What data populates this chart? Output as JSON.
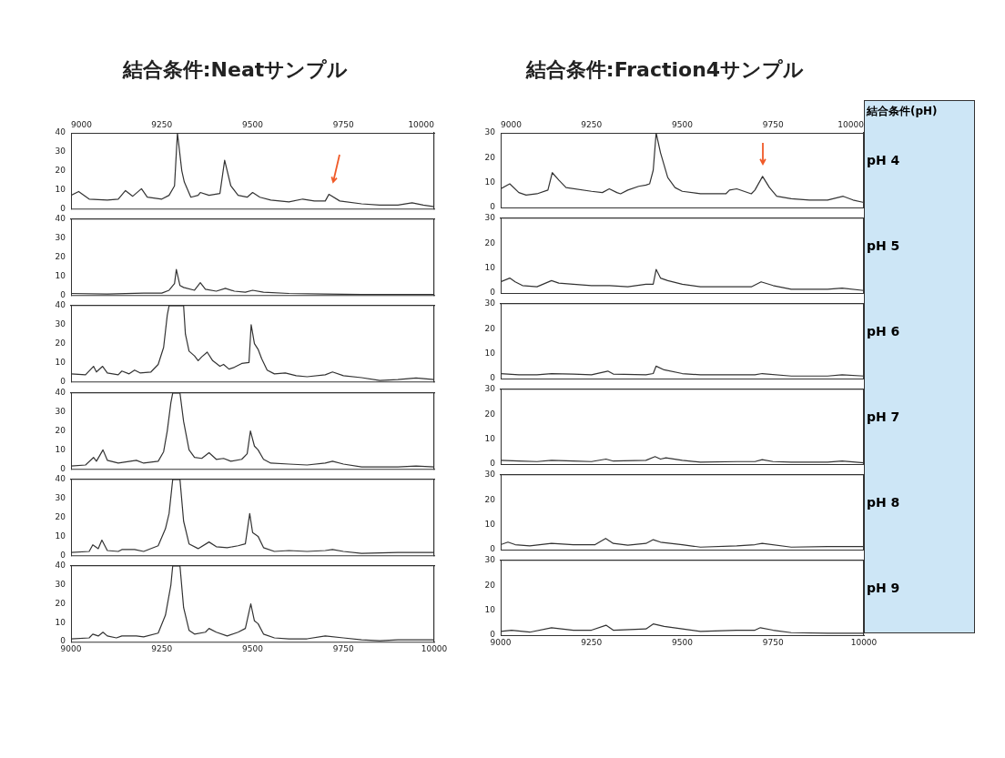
{
  "chart_data": [
    {
      "type": "line",
      "title": "結合条件:Neatサンプル",
      "color": "#333333",
      "marker": "none",
      "grid": false,
      "legend": false,
      "tick_labels": "y",
      "xlim": [
        9000,
        10000
      ],
      "x2lim": [
        9000,
        10000
      ],
      "x2ticks": [
        9000,
        9250,
        9500,
        9750,
        10000
      ],
      "ylim": [
        0,
        40
      ],
      "yticks": [
        0,
        10,
        20,
        30,
        40
      ],
      "x": [
        9000,
        9021,
        9050,
        9100,
        9130,
        9150,
        9170,
        9194,
        9210,
        9250,
        9270,
        9285,
        9293,
        9305,
        9312,
        9330,
        9350,
        9356,
        9380,
        9410,
        9423,
        9440,
        9460,
        9485,
        9500,
        9520,
        9550,
        9600,
        9638,
        9670,
        9700,
        9710,
        9740,
        9800,
        9850,
        9900,
        9939,
        9970,
        10000
      ],
      "values": [
        7,
        9,
        5,
        4.5,
        5,
        9.5,
        6.5,
        10.5,
        6,
        5,
        7,
        12,
        40,
        20,
        14,
        6,
        7,
        8.5,
        7,
        8,
        25.5,
        12,
        7,
        6,
        8.5,
        6,
        4.5,
        3.5,
        5,
        4,
        4,
        7.5,
        4,
        2.5,
        1.8,
        1.8,
        3,
        1.8,
        1
      ]
    },
    {
      "type": "line",
      "color": "#333333",
      "marker": "none",
      "grid": false,
      "legend": false,
      "tick_labels": "y",
      "xlim": [
        9000,
        10000
      ],
      "ylim": [
        0,
        40
      ],
      "yticks": [
        0,
        10,
        20,
        30,
        40
      ],
      "x": [
        9000,
        9100,
        9200,
        9250,
        9270,
        9285,
        9290,
        9300,
        9310,
        9340,
        9356,
        9370,
        9400,
        9425,
        9450,
        9480,
        9500,
        9530,
        9600,
        9700,
        9800,
        9900,
        10000
      ],
      "values": [
        0.8,
        0.5,
        1,
        1,
        2.5,
        6,
        13.5,
        5,
        4,
        2.5,
        6.5,
        3,
        2,
        3.5,
        2,
        1.5,
        2.5,
        1.5,
        0.8,
        0.5,
        0.3,
        0.3,
        0.3
      ]
    },
    {
      "type": "line",
      "color": "#333333",
      "marker": "none",
      "grid": false,
      "legend": false,
      "tick_labels": "y",
      "xlim": [
        9000,
        10000
      ],
      "ylim": [
        0,
        40
      ],
      "yticks": [
        0,
        10,
        20,
        30,
        40
      ],
      "x": [
        9000,
        9040,
        9062,
        9070,
        9087,
        9100,
        9130,
        9140,
        9160,
        9175,
        9190,
        9220,
        9240,
        9255,
        9265,
        9270,
        9310,
        9315,
        9325,
        9340,
        9350,
        9360,
        9375,
        9390,
        9410,
        9420,
        9435,
        9450,
        9470,
        9490,
        9496,
        9505,
        9515,
        9525,
        9540,
        9560,
        9590,
        9620,
        9650,
        9700,
        9720,
        9750,
        9800,
        9850,
        9900,
        9950,
        10000
      ],
      "values": [
        4,
        3.5,
        8,
        5,
        8,
        4.5,
        3.5,
        5.5,
        4,
        6,
        4.5,
        5,
        9,
        18,
        35,
        40,
        40,
        25,
        16,
        13.5,
        11,
        13,
        15.5,
        11,
        8,
        9,
        6.5,
        7.5,
        9.5,
        10,
        30,
        20,
        17,
        12,
        6,
        4,
        4.5,
        3,
        2.5,
        3.5,
        5,
        3,
        2,
        0.5,
        1,
        1.8,
        1
      ]
    },
    {
      "type": "line",
      "color": "#333333",
      "marker": "none",
      "grid": false,
      "legend": false,
      "tick_labels": "y",
      "xlim": [
        9000,
        10000
      ],
      "ylim": [
        0,
        40
      ],
      "yticks": [
        0,
        10,
        20,
        30,
        40
      ],
      "x": [
        9000,
        9040,
        9062,
        9070,
        9088,
        9100,
        9130,
        9180,
        9200,
        9240,
        9255,
        9265,
        9275,
        9280,
        9300,
        9310,
        9325,
        9340,
        9360,
        9380,
        9400,
        9420,
        9440,
        9470,
        9485,
        9494,
        9505,
        9515,
        9530,
        9550,
        9600,
        9650,
        9700,
        9720,
        9750,
        9800,
        9900,
        9950,
        10000
      ],
      "values": [
        1.5,
        2,
        6,
        4,
        10,
        4.5,
        3,
        4.5,
        3,
        4,
        9,
        20,
        35,
        40,
        40,
        25,
        10,
        6,
        5.5,
        8.5,
        5,
        5.5,
        4,
        5,
        8,
        20,
        12,
        10,
        5,
        3,
        2.5,
        2,
        3,
        4,
        2.5,
        1,
        1,
        1.5,
        1
      ]
    },
    {
      "type": "line",
      "color": "#333333",
      "marker": "none",
      "grid": false,
      "legend": false,
      "tick_labels": "y",
      "xlim": [
        9000,
        10000
      ],
      "ylim": [
        0,
        40
      ],
      "yticks": [
        0,
        10,
        20,
        30,
        40
      ],
      "x": [
        9000,
        9050,
        9060,
        9075,
        9085,
        9100,
        9130,
        9140,
        9175,
        9200,
        9240,
        9260,
        9270,
        9280,
        9300,
        9310,
        9325,
        9350,
        9380,
        9400,
        9430,
        9460,
        9480,
        9492,
        9500,
        9515,
        9530,
        9560,
        9600,
        9650,
        9700,
        9720,
        9750,
        9800,
        9900,
        10000
      ],
      "values": [
        1.5,
        2,
        5.5,
        3.5,
        8,
        2.5,
        2,
        3,
        3,
        2,
        5,
        14,
        22,
        40,
        40,
        18,
        6,
        3.5,
        7,
        4.5,
        4,
        5,
        6,
        22,
        12,
        10,
        4,
        2,
        2.5,
        2,
        2.5,
        3,
        2,
        1,
        1.5,
        1.5
      ]
    },
    {
      "type": "line",
      "color": "#333333",
      "marker": "none",
      "grid": false,
      "legend": false,
      "xlim": [
        9000,
        10000
      ],
      "xticks": [
        9000,
        9250,
        9500,
        9750,
        10000
      ],
      "ylim": [
        0,
        40
      ],
      "yticks": [
        0,
        10,
        20,
        30,
        40
      ],
      "x": [
        9000,
        9050,
        9060,
        9075,
        9088,
        9100,
        9125,
        9140,
        9180,
        9200,
        9240,
        9260,
        9275,
        9280,
        9300,
        9310,
        9325,
        9340,
        9370,
        9380,
        9400,
        9430,
        9460,
        9480,
        9495,
        9505,
        9515,
        9530,
        9560,
        9600,
        9650,
        9700,
        9750,
        9800,
        9850,
        9900,
        10000
      ],
      "values": [
        1.5,
        2,
        4,
        3,
        5,
        3,
        2,
        3,
        3,
        2.5,
        4.5,
        14,
        30,
        40,
        40,
        18,
        6,
        4,
        5,
        7,
        5,
        3,
        5,
        7,
        20,
        11,
        9.5,
        4,
        2,
        1.5,
        1.5,
        3,
        2,
        1,
        0.5,
        1,
        1
      ]
    },
    {
      "type": "line",
      "title": "結合条件:Fraction4サンプル",
      "color": "#333333",
      "marker": "none",
      "grid": false,
      "legend": false,
      "tick_labels": "y",
      "xlim": [
        9000,
        10000
      ],
      "x2lim": [
        9000,
        10000
      ],
      "x2ticks": [
        9000,
        9250,
        9500,
        9750,
        10000
      ],
      "ylim": [
        0,
        30
      ],
      "yticks": [
        0,
        10,
        20,
        30
      ],
      "x": [
        9000,
        9025,
        9050,
        9070,
        9100,
        9130,
        9142,
        9160,
        9180,
        9250,
        9280,
        9299,
        9320,
        9330,
        9350,
        9380,
        9400,
        9410,
        9420,
        9428,
        9440,
        9460,
        9480,
        9500,
        9550,
        9600,
        9620,
        9630,
        9650,
        9670,
        9690,
        9700,
        9721,
        9740,
        9760,
        9800,
        9850,
        9900,
        9943,
        9970,
        10000
      ],
      "values": [
        7.5,
        9.5,
        6,
        5,
        5.5,
        7,
        14,
        11,
        8,
        6.5,
        6,
        7.5,
        6,
        5.5,
        7,
        8.5,
        9,
        9.5,
        15,
        30,
        22,
        12,
        8,
        6.5,
        5.5,
        5.5,
        5.5,
        7,
        7.5,
        6.5,
        5.5,
        7,
        12.5,
        8,
        4.5,
        3.5,
        3,
        3,
        4.5,
        3,
        2
      ]
    },
    {
      "type": "line",
      "color": "#333333",
      "marker": "none",
      "grid": false,
      "legend": false,
      "tick_labels": "y",
      "xlim": [
        9000,
        10000
      ],
      "ylim": [
        0,
        30
      ],
      "yticks": [
        0,
        10,
        20,
        30
      ],
      "x": [
        9000,
        9025,
        9040,
        9060,
        9100,
        9140,
        9160,
        9200,
        9250,
        9300,
        9350,
        9400,
        9420,
        9428,
        9440,
        9460,
        9500,
        9550,
        9600,
        9650,
        9690,
        9717,
        9750,
        9800,
        9900,
        9940,
        10000
      ],
      "values": [
        4.5,
        6,
        4.5,
        3,
        2.5,
        5,
        4,
        3.5,
        3,
        3,
        2.5,
        3.5,
        3.5,
        9.5,
        6,
        5,
        3.5,
        2.5,
        2.5,
        2.5,
        2.5,
        4.5,
        3,
        1.5,
        1.5,
        2,
        1
      ]
    },
    {
      "type": "line",
      "color": "#333333",
      "marker": "none",
      "grid": false,
      "legend": false,
      "tick_labels": "y",
      "xlim": [
        9000,
        10000
      ],
      "ylim": [
        0,
        30
      ],
      "yticks": [
        0,
        10,
        20,
        30
      ],
      "x": [
        9000,
        9050,
        9100,
        9140,
        9200,
        9250,
        9295,
        9310,
        9400,
        9420,
        9428,
        9450,
        9500,
        9550,
        9600,
        9700,
        9720,
        9800,
        9900,
        9940,
        10000
      ],
      "values": [
        2,
        1.5,
        1.5,
        2,
        1.8,
        1.5,
        3,
        1.8,
        1.5,
        2,
        5,
        3.5,
        2,
        1.5,
        1.5,
        1.5,
        2,
        1,
        1,
        1.5,
        1
      ]
    },
    {
      "type": "line",
      "color": "#333333",
      "marker": "none",
      "grid": false,
      "legend": false,
      "tick_labels": "y",
      "xlim": [
        9000,
        10000
      ],
      "ylim": [
        0,
        30
      ],
      "yticks": [
        0,
        10,
        20,
        30
      ],
      "x": [
        9000,
        9050,
        9100,
        9140,
        9200,
        9250,
        9290,
        9310,
        9400,
        9425,
        9440,
        9455,
        9500,
        9550,
        9650,
        9700,
        9720,
        9750,
        9800,
        9900,
        9940,
        10000
      ],
      "values": [
        1.5,
        1.2,
        1,
        1.5,
        1.2,
        1,
        2,
        1.2,
        1.5,
        3,
        2,
        2.5,
        1.5,
        0.8,
        1,
        1,
        1.8,
        1,
        0.8,
        0.8,
        1.2,
        0.5
      ]
    },
    {
      "type": "line",
      "color": "#333333",
      "marker": "none",
      "grid": false,
      "legend": false,
      "tick_labels": "y",
      "xlim": [
        9000,
        10000
      ],
      "ylim": [
        0,
        30
      ],
      "yticks": [
        0,
        10,
        20,
        30
      ],
      "x": [
        9000,
        9020,
        9040,
        9080,
        9140,
        9200,
        9260,
        9289,
        9310,
        9350,
        9400,
        9420,
        9440,
        9500,
        9550,
        9650,
        9700,
        9720,
        9800,
        9900,
        10000
      ],
      "values": [
        2,
        3,
        2,
        1.5,
        2.5,
        2,
        2,
        4.5,
        2.5,
        1.8,
        2.5,
        4,
        3,
        2,
        1,
        1.5,
        2,
        2.5,
        1,
        1.2,
        1.2
      ]
    },
    {
      "type": "line",
      "color": "#333333",
      "marker": "none",
      "grid": false,
      "legend": false,
      "xlim": [
        9000,
        10000
      ],
      "xticks": [
        9000,
        9250,
        9500,
        9750,
        10000
      ],
      "ylim": [
        0,
        30
      ],
      "yticks": [
        0,
        10,
        20,
        30
      ],
      "x": [
        9000,
        9030,
        9080,
        9140,
        9200,
        9250,
        9290,
        9310,
        9400,
        9420,
        9450,
        9500,
        9550,
        9650,
        9700,
        9715,
        9750,
        9800,
        9900,
        10000
      ],
      "values": [
        1.5,
        2,
        1.2,
        3,
        2,
        2,
        4,
        2,
        2.5,
        4.5,
        3.5,
        2.5,
        1.5,
        2,
        2,
        3,
        2,
        1,
        0.8,
        0.8
      ]
    },
    {
      "type": "other",
      "title": "結合条件(pH)",
      "annotations": [
        "pH 4",
        "pH 5",
        "pH 6",
        "pH 7",
        "pH 8",
        "pH 9"
      ]
    }
  ]
}
